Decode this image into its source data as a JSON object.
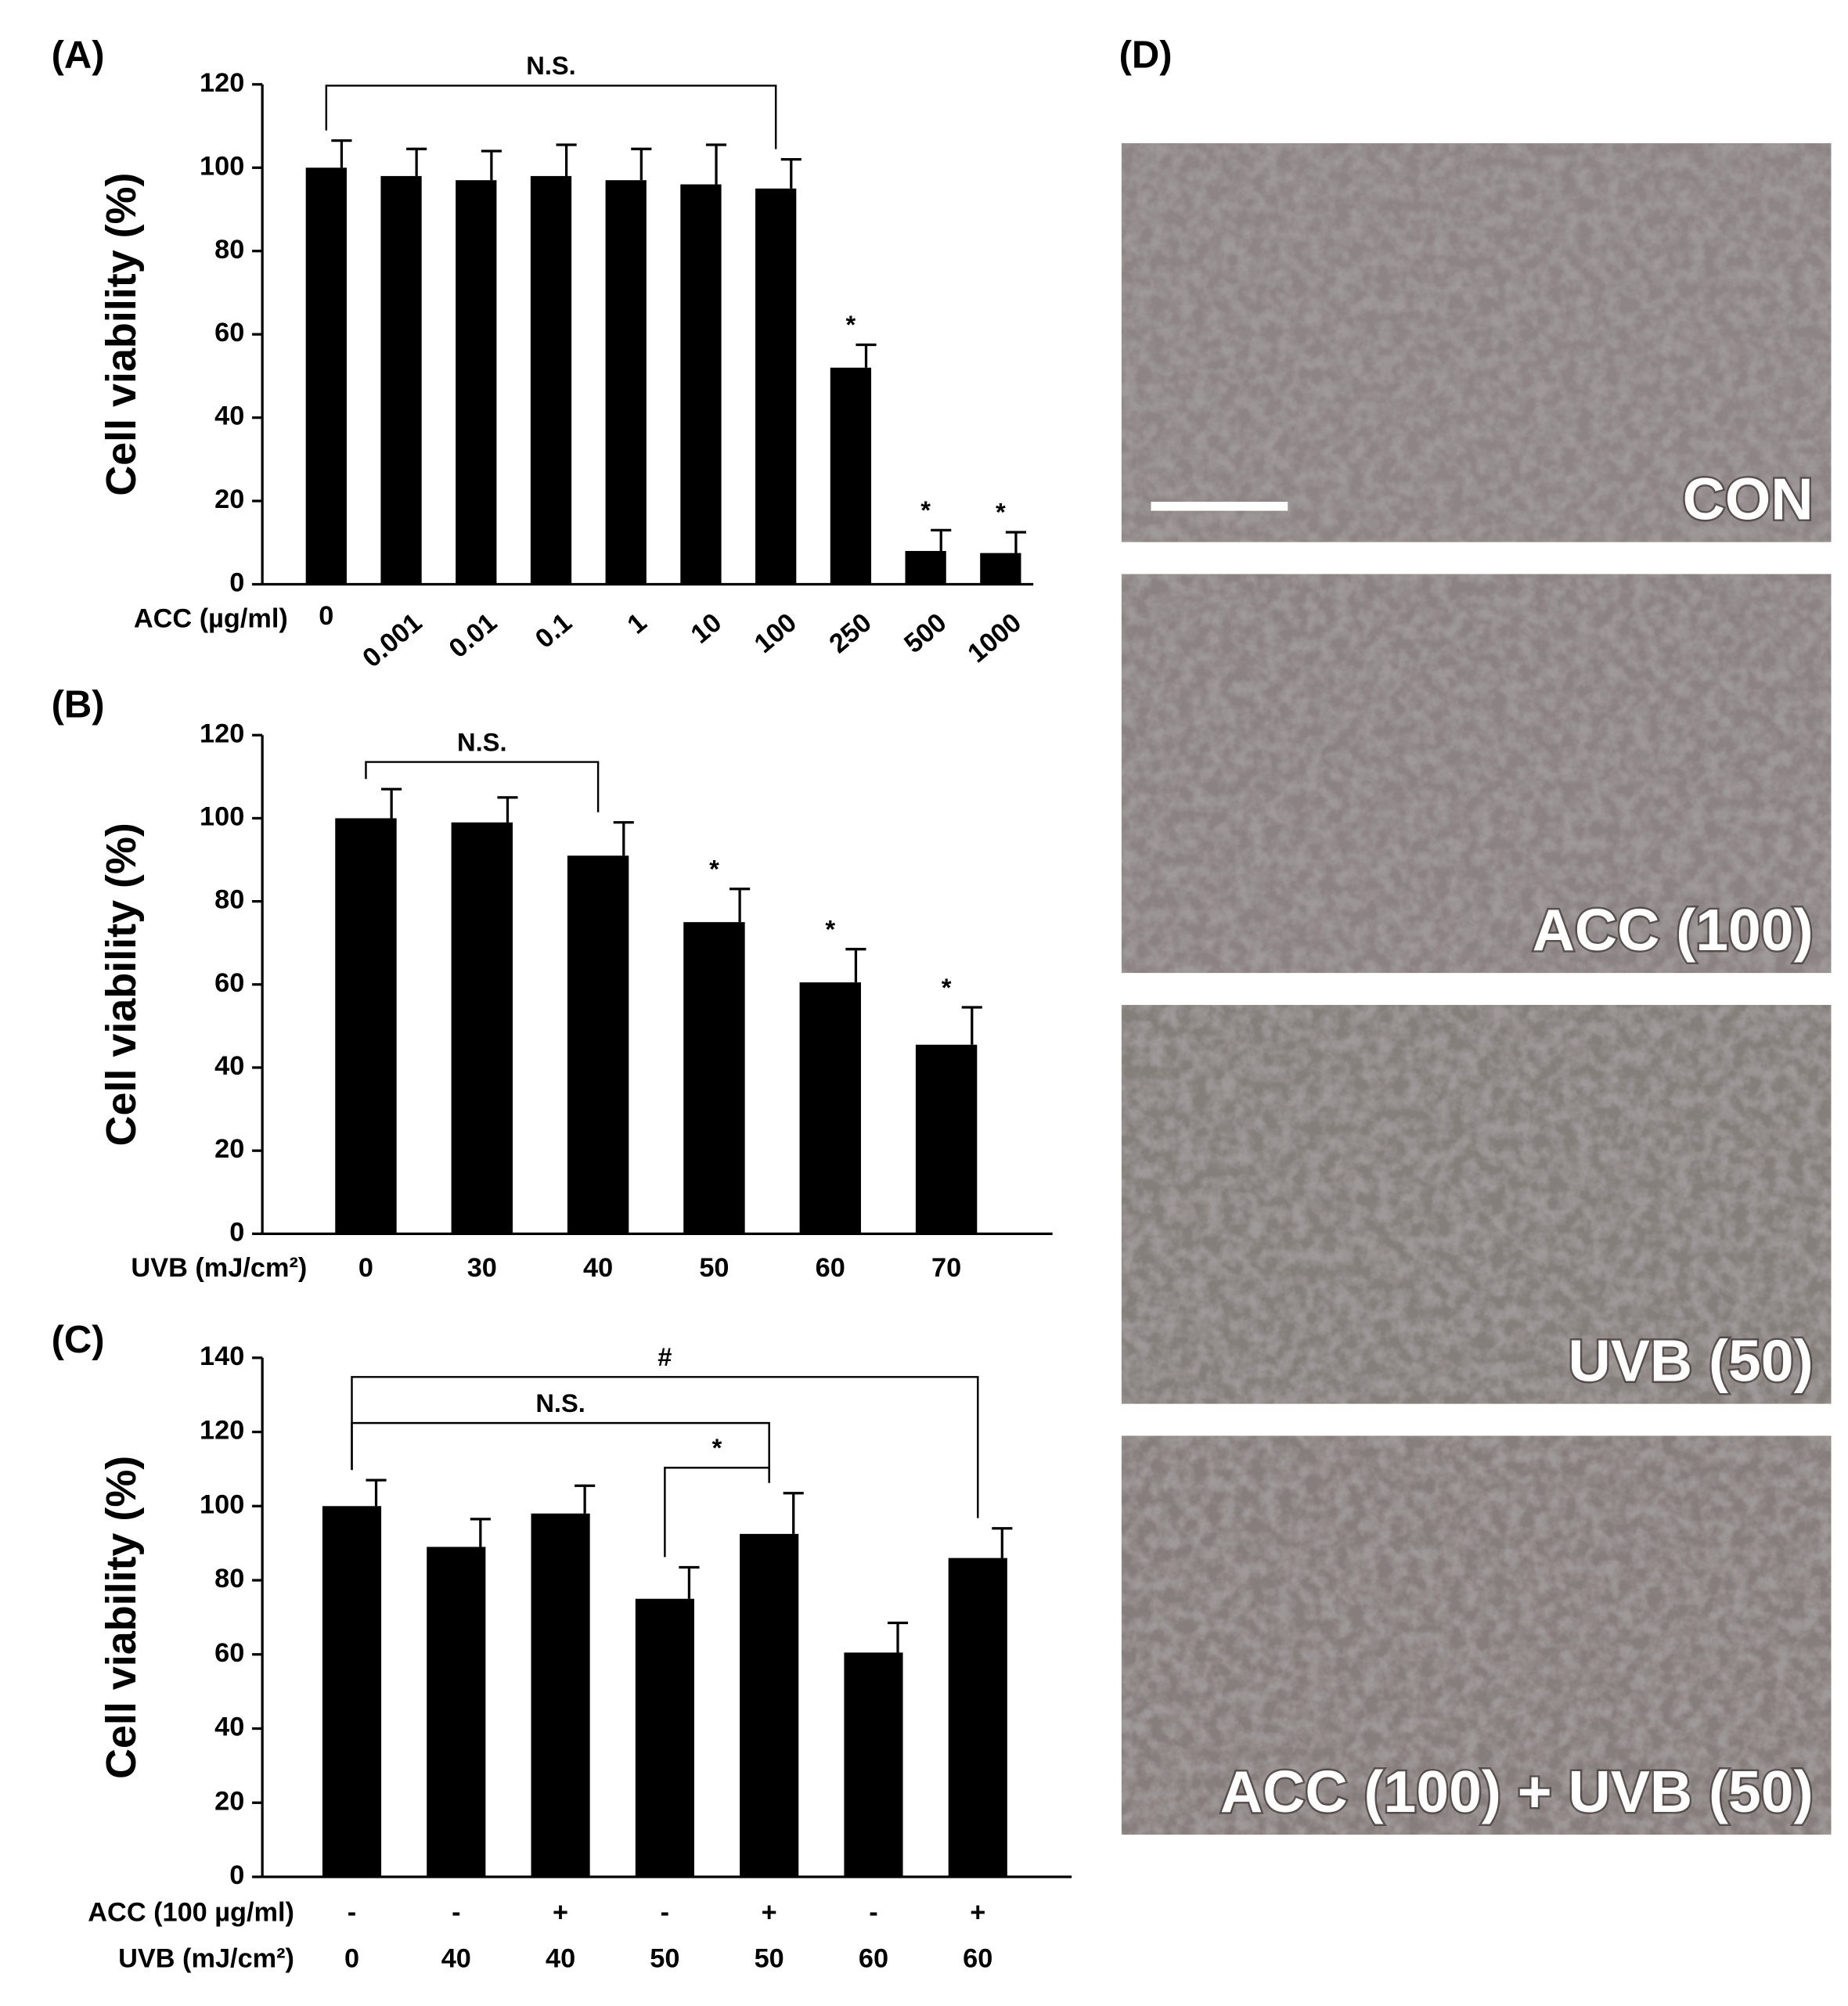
{
  "chart_data": [
    {
      "type": "bar",
      "panel": "(A)",
      "ylabel": "Cell viability (%)",
      "xlabel": "ACC (µg/ml)",
      "categories": [
        "0",
        "0.001",
        "0.01",
        "0.1",
        "1",
        "10",
        "100",
        "250",
        "500",
        "1000"
      ],
      "values": [
        100,
        98,
        97,
        98,
        97,
        96,
        95,
        52,
        8,
        7.5
      ],
      "errors": [
        6.5,
        6.5,
        7,
        7.5,
        7.5,
        9.5,
        7,
        5.5,
        5,
        5
      ],
      "value_annotations": [
        null,
        null,
        null,
        null,
        null,
        null,
        null,
        "*",
        "*",
        "*"
      ],
      "brackets": [
        {
          "from": 0,
          "to": 6,
          "label": "N.S."
        }
      ],
      "color": "#000000",
      "ylim": [
        0,
        120
      ],
      "yticks": [
        0,
        20,
        40,
        60,
        80,
        100,
        120
      ]
    },
    {
      "type": "bar",
      "panel": "(B)",
      "ylabel": "Cell viability (%)",
      "xlabel": "UVB (mJ/cm²)",
      "categories": [
        "0",
        "30",
        "40",
        "50",
        "60",
        "70"
      ],
      "values": [
        100,
        99,
        91,
        75,
        60.5,
        45.5
      ],
      "errors": [
        7,
        6,
        8,
        8,
        8,
        9
      ],
      "value_annotations": [
        null,
        null,
        null,
        "*",
        "*",
        "*"
      ],
      "brackets": [
        {
          "from": 0,
          "to": 2,
          "label": "N.S."
        }
      ],
      "color": "#000000",
      "ylim": [
        0,
        120
      ],
      "yticks": [
        0,
        20,
        40,
        60,
        80,
        100,
        120
      ]
    },
    {
      "type": "bar",
      "panel": "(C)",
      "ylabel": "Cell viability (%)",
      "category_rows": [
        {
          "name": "ACC (100 µg/ml)",
          "labels": [
            "-",
            "-",
            "+",
            "-",
            "+",
            "-",
            "+"
          ]
        },
        {
          "name": "UVB (mJ/cm²)",
          "labels": [
            "0",
            "40",
            "40",
            "50",
            "50",
            "60",
            "60"
          ]
        }
      ],
      "values": [
        100,
        89,
        98,
        75,
        92.5,
        60.5,
        86
      ],
      "errors": [
        7,
        7.5,
        7.5,
        8.5,
        11,
        8,
        8
      ],
      "brackets": [
        {
          "from": 0,
          "to": 6,
          "label": "#"
        },
        {
          "from": 0,
          "to": 4,
          "label": "N.S."
        },
        {
          "from": 3,
          "to": 4,
          "label": "*"
        }
      ],
      "color": "#000000",
      "ylim": [
        0,
        140
      ],
      "yticks": [
        0,
        20,
        40,
        60,
        80,
        100,
        120,
        140
      ]
    }
  ],
  "micrographs": {
    "panel": "(D)",
    "labels": [
      "CON",
      "ACC (100)",
      "UVB (50)",
      "ACC (100) + UVB (50)"
    ]
  }
}
